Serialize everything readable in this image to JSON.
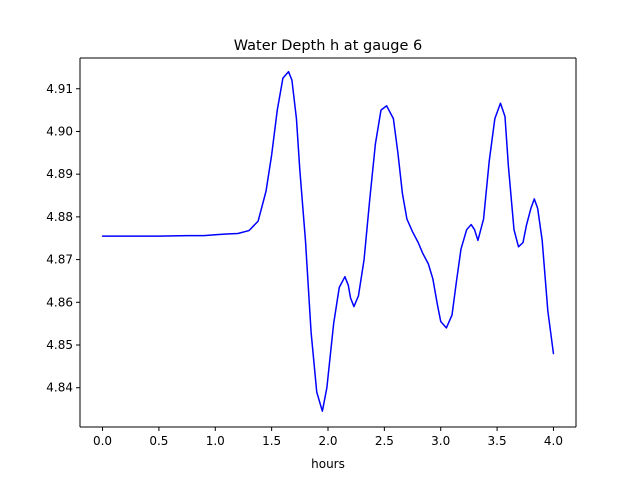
{
  "chart_data": {
    "type": "line",
    "title": "Water Depth h at gauge 6",
    "xlabel": "hours",
    "ylabel": "",
    "xlim": [
      -0.2,
      4.2
    ],
    "ylim": [
      4.8308,
      4.9172
    ],
    "xticks": [
      0.0,
      0.5,
      1.0,
      1.5,
      2.0,
      2.5,
      3.0,
      3.5,
      4.0
    ],
    "xtick_labels": [
      "0.0",
      "0.5",
      "1.0",
      "1.5",
      "2.0",
      "2.5",
      "3.0",
      "3.5",
      "4.0"
    ],
    "yticks": [
      4.84,
      4.85,
      4.86,
      4.87,
      4.88,
      4.89,
      4.9,
      4.91
    ],
    "ytick_labels": [
      "4.84",
      "4.85",
      "4.86",
      "4.87",
      "4.88",
      "4.89",
      "4.90",
      "4.91"
    ],
    "grid": false,
    "line_color": "#0000ff",
    "series": [
      {
        "x": [
          0.0,
          0.25,
          0.5,
          0.75,
          0.9,
          1.0,
          1.1,
          1.2,
          1.3,
          1.38,
          1.45,
          1.5,
          1.55,
          1.6,
          1.65,
          1.68,
          1.72,
          1.75,
          1.8,
          1.85,
          1.9,
          1.95,
          1.99,
          2.05,
          2.1,
          2.15,
          2.18,
          2.2,
          2.23,
          2.27,
          2.32,
          2.37,
          2.42,
          2.47,
          2.52,
          2.58,
          2.62,
          2.66,
          2.7,
          2.75,
          2.8,
          2.84,
          2.89,
          2.93,
          2.97,
          3.0,
          3.05,
          3.1,
          3.14,
          3.18,
          3.23,
          3.27,
          3.3,
          3.33,
          3.38,
          3.43,
          3.48,
          3.53,
          3.57,
          3.6,
          3.65,
          3.69,
          3.73,
          3.76,
          3.8,
          3.83,
          3.86,
          3.9,
          3.95,
          4.0
        ],
        "values": [
          4.8755,
          4.8755,
          4.8755,
          4.8756,
          4.8756,
          4.8758,
          4.876,
          4.8761,
          4.8768,
          4.879,
          4.886,
          4.8945,
          4.905,
          4.9125,
          4.914,
          4.912,
          4.903,
          4.891,
          4.8745,
          4.853,
          4.839,
          4.8345,
          4.84,
          4.855,
          4.8635,
          4.866,
          4.864,
          4.861,
          4.859,
          4.8615,
          4.87,
          4.884,
          4.897,
          4.905,
          4.906,
          4.903,
          4.895,
          4.8855,
          4.8795,
          4.8765,
          4.874,
          4.8715,
          4.869,
          4.8655,
          4.8595,
          4.8555,
          4.854,
          4.857,
          4.865,
          4.8725,
          4.877,
          4.8782,
          4.877,
          4.8745,
          4.8795,
          4.893,
          4.903,
          4.9066,
          4.9035,
          4.892,
          4.877,
          4.873,
          4.874,
          4.878,
          4.882,
          4.8842,
          4.882,
          4.8745,
          4.858,
          4.848
        ]
      }
    ]
  }
}
